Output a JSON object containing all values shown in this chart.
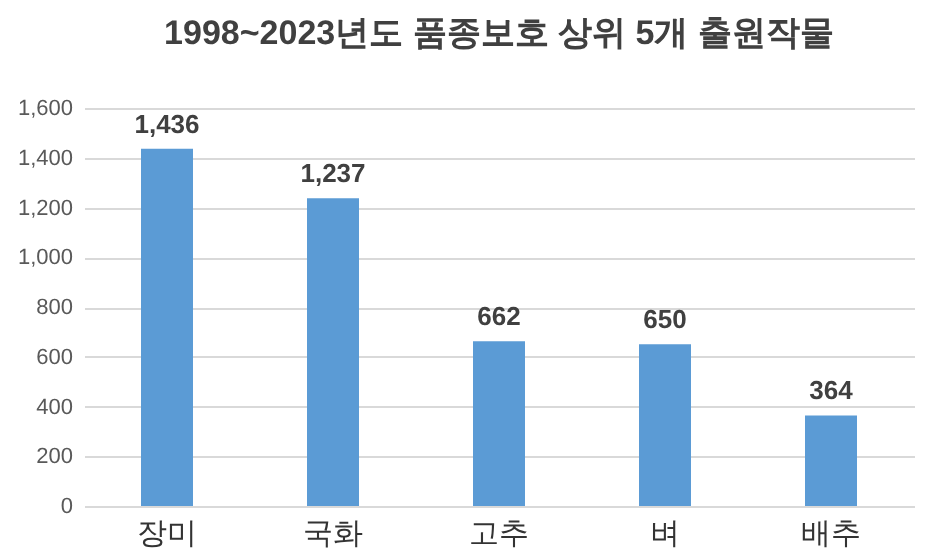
{
  "chart_data": {
    "type": "bar",
    "title": "1998~2023년도 품종보호 상위 5개 출원작물",
    "categories": [
      "장미",
      "국화",
      "고추",
      "벼",
      "배추"
    ],
    "values": [
      1436,
      1237,
      662,
      650,
      364
    ],
    "color": "#5b9bd5",
    "value_labels": [
      "1,436",
      "1,237",
      "662",
      "650",
      "364"
    ],
    "ylim": [
      0,
      1600
    ],
    "yticks": [
      0,
      200,
      400,
      600,
      800,
      {
        "value": 1000,
        "label": "1,000"
      },
      {
        "value": 1200,
        "label": "1,200"
      },
      {
        "value": 1400,
        "label": "1,400"
      },
      {
        "value": 1600,
        "label": "1,600"
      }
    ],
    "grid": "y"
  }
}
